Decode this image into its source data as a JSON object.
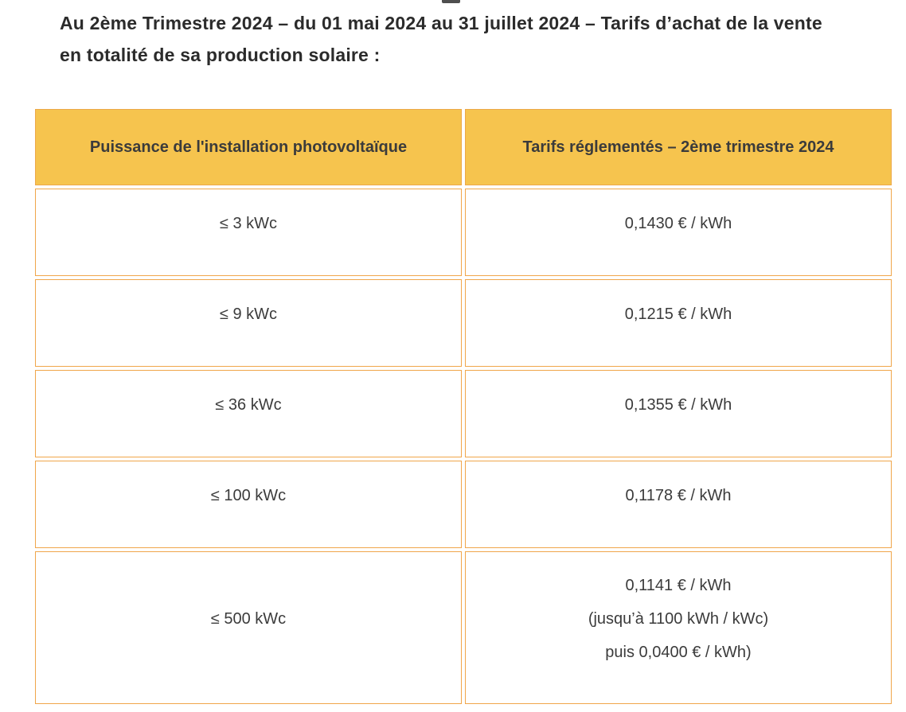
{
  "intro": {
    "lines": [
      "Au 2ème Trimestre 2024 – du 01 mai 2024 au 31 juillet 2024 – Tarifs d’achat de la vente",
      "en totalité de sa production solaire :"
    ]
  },
  "table": {
    "headers": [
      "Puissance de l'installation photovoltaïque",
      "Tarifs réglementés – 2ème trimestre 2024"
    ],
    "rows": [
      {
        "puissance": "≤ 3 kWc",
        "tarif": [
          "0,1430 € / kWh"
        ]
      },
      {
        "puissance": "≤ 9 kWc",
        "tarif": [
          "0,1215 € / kWh"
        ]
      },
      {
        "puissance": "≤ 36 kWc",
        "tarif": [
          "0,1355 € / kWh"
        ]
      },
      {
        "puissance": "≤ 100 kWc",
        "tarif": [
          "0,1178 € / kWh"
        ]
      },
      {
        "puissance": "≤ 500 kWc",
        "tarif": [
          "0,1141 € / kWh",
          "(jusqu’à 1100 kWh / kWc)",
          "puis 0,0400 € / kWh)"
        ]
      }
    ]
  },
  "colors": {
    "header_background": "#f6c44e",
    "table_border": "#f0a64a",
    "cell_text": "#3b3b3b",
    "title_text": "#2b2b2b"
  }
}
